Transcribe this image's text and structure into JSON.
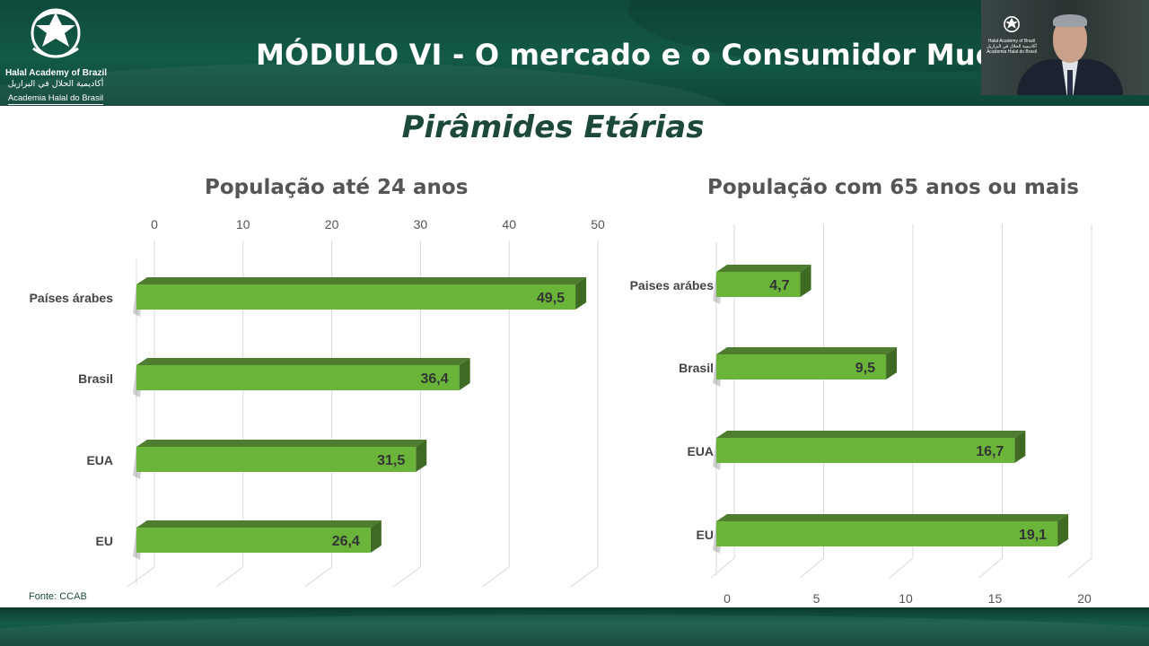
{
  "header": {
    "logo": {
      "name": "Halal Academy of Brazil",
      "arabic": "أكاديمية الحلال في البرازيل",
      "portuguese": "Academia Halal do Brasil"
    },
    "title": "MÓDULO VI - O mercado e o Consumidor Muçulman"
  },
  "webcam": {
    "logo_name": "Halal Academy of Brazil",
    "logo_arabic": "أكاديمية الحلال في البرازيل",
    "logo_portuguese": "Academia Halal do Brasil"
  },
  "slide": {
    "title": "Pirâmides Etárias",
    "source": "Fonte: CCAB"
  },
  "colors": {
    "header": "#135a47",
    "bar_front": "#6ab43a",
    "bar_top": "#4f7d2f",
    "bar_side": "#3f6a24",
    "title_green": "#1d4a38"
  },
  "chart_data": [
    {
      "type": "bar",
      "orientation": "horizontal",
      "title": "População até 24 anos",
      "categories": [
        "Países árabes",
        "Brasil",
        "EUA",
        "EU"
      ],
      "values": [
        49.5,
        36.4,
        31.5,
        26.4
      ],
      "value_labels": [
        "49,5",
        "36,4",
        "31,5",
        "26,4"
      ],
      "xlim": [
        0,
        50
      ],
      "ticks": [
        "0",
        "10",
        "20",
        "30",
        "40",
        "50"
      ],
      "axis_position": "top",
      "grid": true
    },
    {
      "type": "bar",
      "orientation": "horizontal",
      "title": "População com 65 anos ou mais",
      "categories": [
        "Paises arábes",
        "Brasil",
        "EUA",
        "EU"
      ],
      "values": [
        4.7,
        9.5,
        16.7,
        19.1
      ],
      "value_labels": [
        "4,7",
        "9,5",
        "16,7",
        "19,1"
      ],
      "xlim": [
        0,
        20
      ],
      "ticks": [
        "0",
        "5",
        "10",
        "15",
        "20"
      ],
      "axis_position": "bottom",
      "grid": true
    }
  ]
}
